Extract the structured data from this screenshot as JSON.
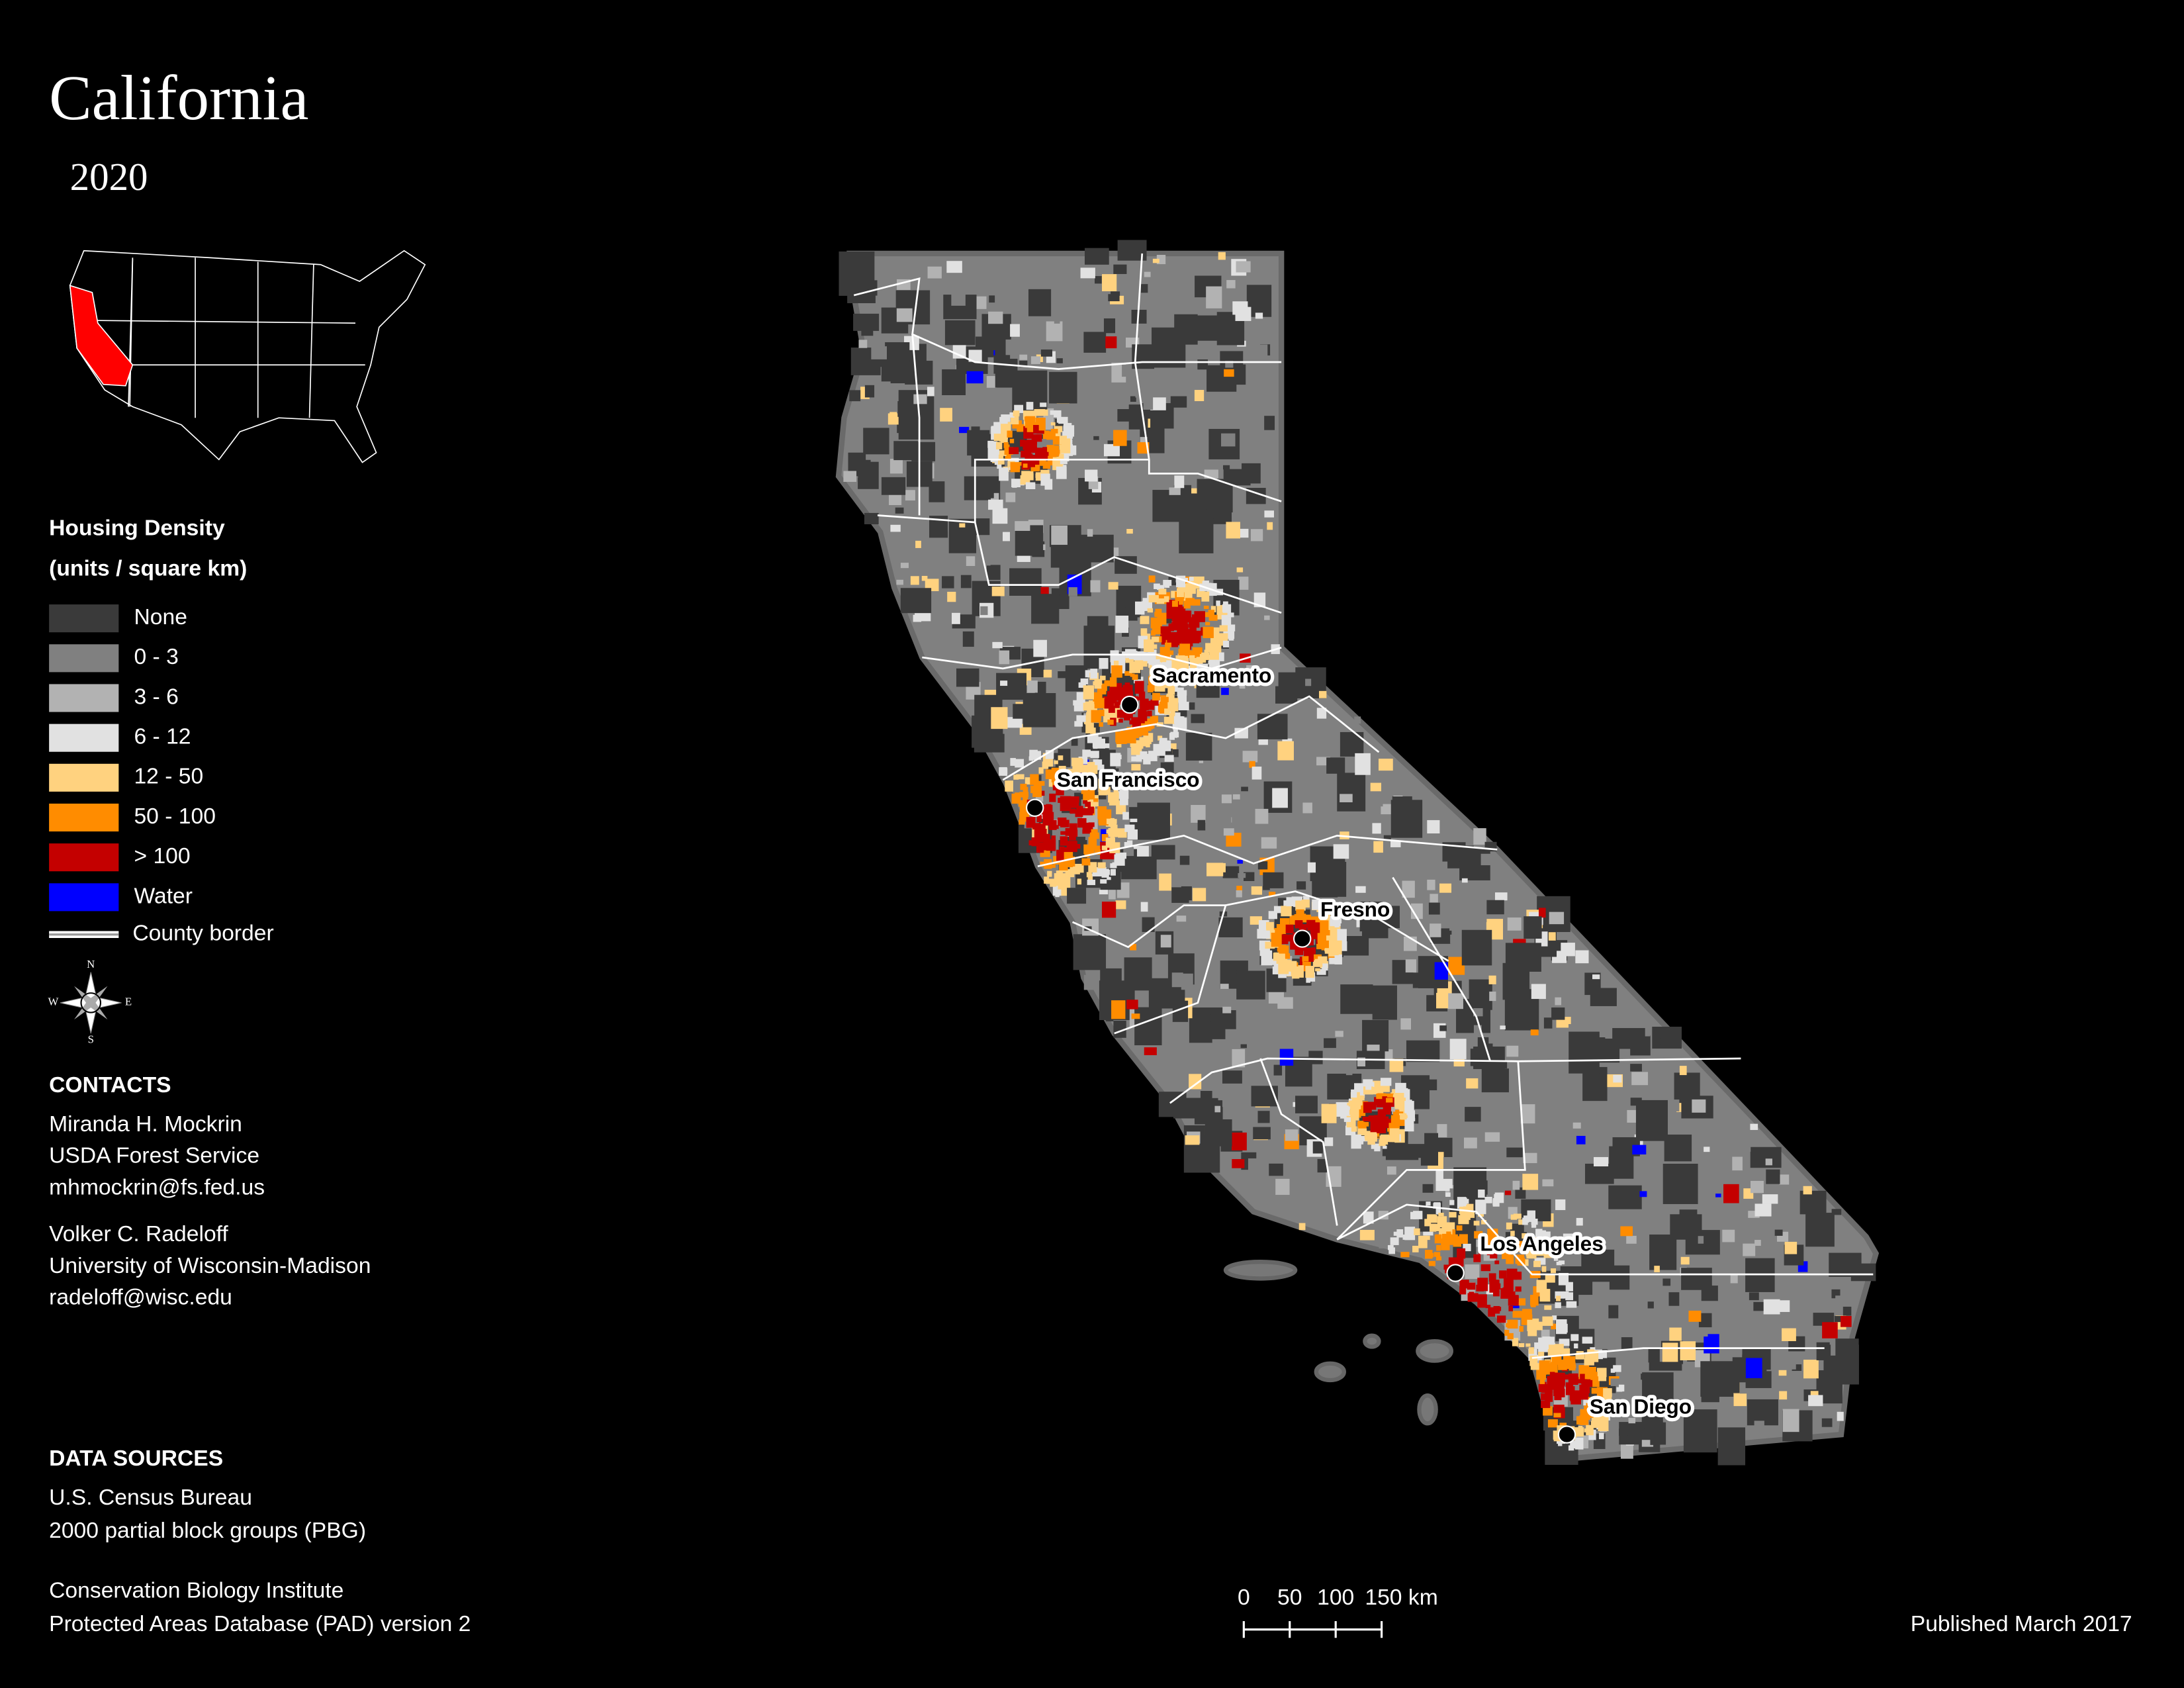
{
  "header": {
    "title": "California",
    "year": "2020"
  },
  "legend": {
    "title": "Housing Density",
    "subtitle": "(units / square km)",
    "items": [
      {
        "label": "None",
        "color": "#3a3a3a"
      },
      {
        "label": "0 - 3",
        "color": "#808080"
      },
      {
        "label": "3 - 6",
        "color": "#b2b2b2"
      },
      {
        "label": "6 - 12",
        "color": "#e1e1e1"
      },
      {
        "label": "12 - 50",
        "color": "#ffd27f"
      },
      {
        "label": "50 - 100",
        "color": "#ff8c00"
      },
      {
        "label": "> 100",
        "color": "#c40000"
      },
      {
        "label": "Water",
        "color": "#0000ff"
      }
    ],
    "border_label": "County border"
  },
  "compass": {
    "n": "N",
    "e": "E",
    "s": "S",
    "w": "W"
  },
  "contacts": {
    "heading": "CONTACTS",
    "people": [
      [
        "Miranda H. Mockrin",
        "USDA Forest Service",
        "mhmockrin@fs.fed.us"
      ],
      [
        "Volker C. Radeloff",
        "University of Wisconsin-Madison",
        "radeloff@wisc.edu"
      ]
    ]
  },
  "data_sources": {
    "heading": "DATA SOURCES",
    "groups": [
      [
        "U.S. Census Bureau",
        "2000 partial block groups (PBG)"
      ],
      [
        "Conservation Biology Institute",
        "Protected Areas Database (PAD) version 2"
      ]
    ]
  },
  "scale_bar": {
    "labels": [
      "0",
      "50",
      "100",
      "150 km"
    ]
  },
  "published": "Published March 2017",
  "cities": [
    {
      "name": "Sacramento"
    },
    {
      "name": "San Francisco"
    },
    {
      "name": "Fresno"
    },
    {
      "name": "Los Angeles"
    },
    {
      "name": "San Diego"
    }
  ]
}
